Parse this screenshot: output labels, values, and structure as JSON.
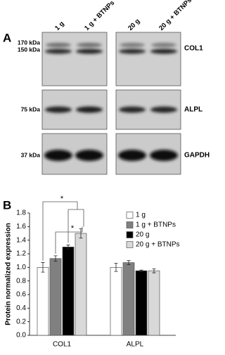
{
  "figure_a": {
    "panel_label": "A",
    "lanes": [
      "1 g",
      "1 g + BTNPs",
      "20 g",
      "20 g + BTNPs"
    ],
    "markers": [
      "170 kDa",
      "150 kDa",
      "75 kDa",
      "37 kDa"
    ],
    "proteins": [
      "COL1",
      "ALPL",
      "GAPDH"
    ]
  },
  "chart_data": {
    "type": "bar",
    "panel_label": "B",
    "ylabel": "Protein normalized expression",
    "categories": [
      "COL1",
      "ALPL"
    ],
    "series": [
      {
        "name": "1 g",
        "color": "#ffffff",
        "values": [
          1.0,
          1.0
        ],
        "errors": [
          0.07,
          0.06
        ]
      },
      {
        "name": "1 g + BTNPs",
        "color": "#808080",
        "values": [
          1.13,
          1.07
        ],
        "errors": [
          0.04,
          0.03
        ]
      },
      {
        "name": "20 g",
        "color": "#000000",
        "values": [
          1.3,
          0.95
        ],
        "errors": [
          0.03,
          0.01
        ]
      },
      {
        "name": "20 g + BTNPs",
        "color": "#d9d9d9",
        "values": [
          1.5,
          0.95
        ],
        "errors": [
          0.07,
          0.03
        ]
      }
    ],
    "ylim": [
      0,
      1.8
    ],
    "yticks": [
      {
        "value": 0,
        "label": "0.0"
      },
      {
        "value": 0.2,
        "label": "0.2"
      },
      {
        "value": 0.4,
        "label": "0.4"
      },
      {
        "value": 0.6,
        "label": "0.6"
      },
      {
        "value": 0.8,
        "label": "0.8"
      },
      {
        "value": 1.0,
        "label": "1.0"
      },
      {
        "value": 1.2,
        "label": "1.2"
      },
      {
        "value": 1.4,
        "label": "1.4"
      },
      {
        "value": 1.6,
        "label": "1.6"
      },
      {
        "value": 1.8,
        "label": "1.8"
      }
    ],
    "annotations": [
      "*",
      "*"
    ]
  }
}
